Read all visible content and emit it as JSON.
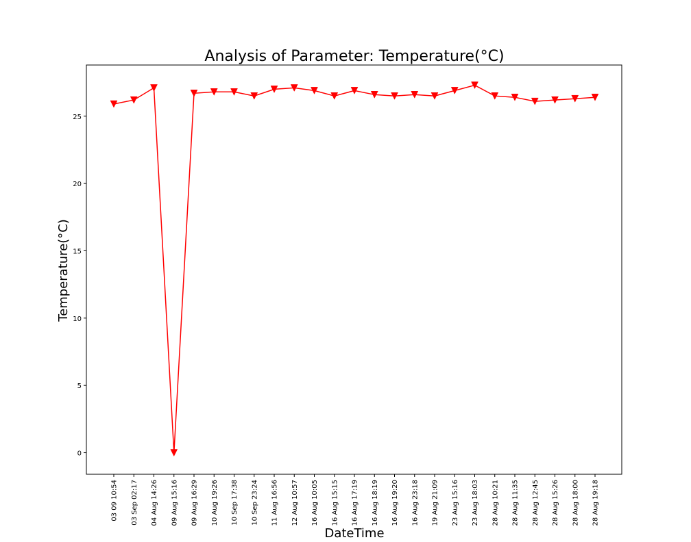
{
  "chart_data": {
    "type": "line",
    "title": "Analysis of Parameter: Temperature(°C)",
    "xlabel": "DateTime",
    "ylabel": "Temperature(°C)",
    "x": [
      "03 09 10:54",
      "03 Sep 02:17",
      "04 Aug 14:26",
      "09 Aug 15:16",
      "09 Aug 16:29",
      "10 Aug 19:26",
      "10 Sep 17:38",
      "10 Sep 23:24",
      "11 Aug 16:56",
      "12 Aug 10:57",
      "16 Aug 10:05",
      "16 Aug 15:15",
      "16 Aug 17:19",
      "16 Aug 18:19",
      "16 Aug 19:20",
      "16 Aug 23:18",
      "19 Aug 21:09",
      "23 Aug 15:16",
      "23 Aug 18:03",
      "28 Aug 10:21",
      "28 Aug 11:35",
      "28 Aug 12:45",
      "28 Aug 15:26",
      "28 Aug 18:00",
      "28 Aug 19:18"
    ],
    "series": [
      {
        "values": [
          25.9,
          26.2,
          27.1,
          0.0,
          26.7,
          26.8,
          26.8,
          26.5,
          27.0,
          27.1,
          26.9,
          26.5,
          26.9,
          26.6,
          26.5,
          26.6,
          26.5,
          26.9,
          27.3,
          26.5,
          26.4,
          26.1,
          26.2,
          26.3,
          26.4
        ],
        "color": "#ff0000",
        "marker": "triangle-down"
      }
    ],
    "ylim": [
      -1.6,
      28.8
    ],
    "yticks": [
      0,
      5,
      10,
      15,
      20,
      25
    ],
    "grid": false,
    "legend": "none"
  }
}
